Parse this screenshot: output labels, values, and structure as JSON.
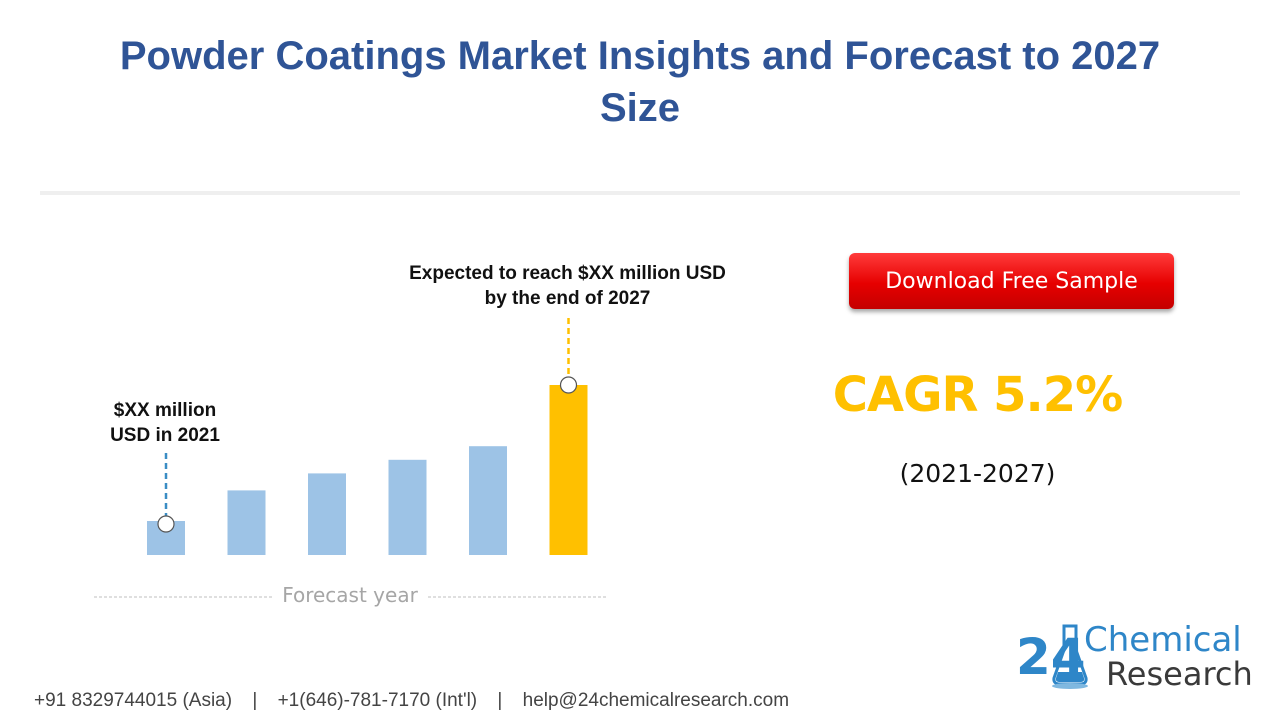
{
  "header": {
    "title_line1": "Powder Coatings Market Insights and Forecast to 2027",
    "title_line2": "Size"
  },
  "chart_data": {
    "type": "bar",
    "categories": [
      "",
      "",
      "",
      "",
      "",
      ""
    ],
    "values": [
      20,
      38,
      48,
      56,
      64,
      100
    ],
    "ylim": [
      0,
      100
    ],
    "grid": false,
    "highlight_index": 5,
    "colors": {
      "bar": "#9dc3e6",
      "highlight": "#ffc000",
      "leader_start": "#3a8dc4",
      "leader_end": "#ffc000",
      "axis": "#bfbfbf"
    },
    "xlabel": "Forecast year",
    "annotations": {
      "start": {
        "line1": "$XX million",
        "line2": "USD in 2021"
      },
      "end": {
        "line1": "Expected to reach $XX million USD",
        "line2": "by the end of 2027"
      }
    }
  },
  "cta": {
    "download_label": "Download Free Sample"
  },
  "stats": {
    "cagr": "CAGR 5.2%",
    "period": "(2021-2027)"
  },
  "logo": {
    "number": "24",
    "word1": "Chemical",
    "word2": "Research"
  },
  "footer": {
    "phone_asia": "+91 8329744015 (Asia)",
    "separator": "|",
    "phone_intl": "+1(646)-781-7170 (Int'l)",
    "email": "help@24chemicalresearch.com"
  }
}
